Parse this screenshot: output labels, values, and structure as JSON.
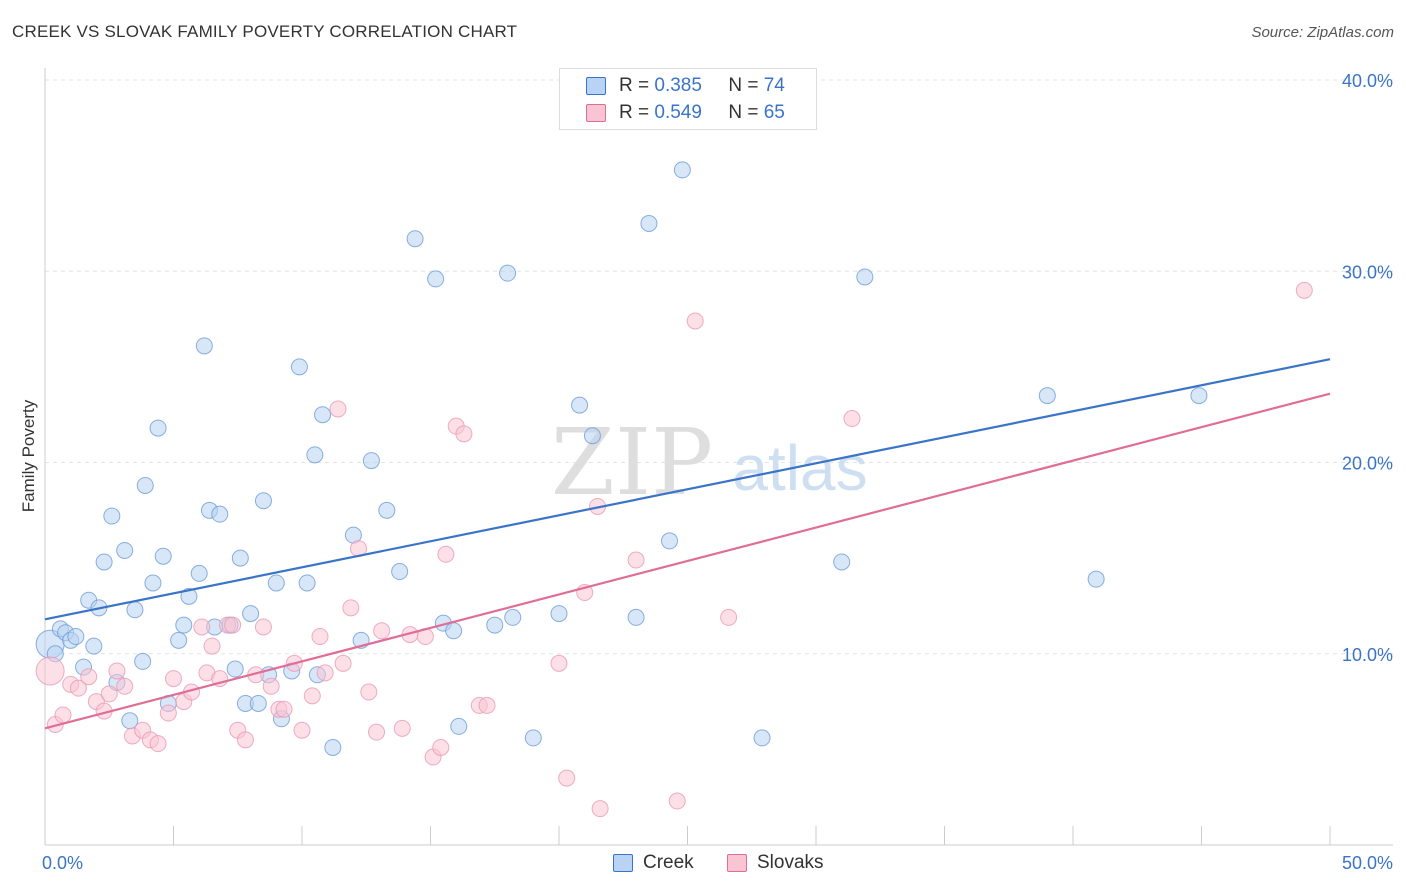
{
  "header": {
    "title": "CREEK VS SLOVAK FAMILY POVERTY CORRELATION CHART",
    "source": "Source: ZipAtlas.com"
  },
  "watermark": {
    "zip": "ZIP",
    "atlas": "atlas"
  },
  "legend": {
    "rows": [
      {
        "r_label": "R =",
        "r_value": "0.385",
        "n_label": "N =",
        "n_value": "74",
        "color": "#b8d3f3"
      },
      {
        "r_label": "R =",
        "r_value": "0.549",
        "n_label": "N =",
        "n_value": "65",
        "color": "#f9c4d4"
      }
    ]
  },
  "bottom_legend": {
    "items": [
      {
        "label": "Creek",
        "color": "#b8d3f3"
      },
      {
        "label": "Slovaks",
        "color": "#f9c4d4"
      }
    ]
  },
  "colors": {
    "creek": "#3a74c9",
    "slovaks": "#e06d96",
    "tick_text": "#3a74c9",
    "grid": "#e3e3e3"
  },
  "chart_data": {
    "type": "scatter",
    "title": "CREEK VS SLOVAK FAMILY POVERTY CORRELATION CHART",
    "xlabel": "",
    "ylabel": "Family Poverty",
    "xlim": [
      0,
      50
    ],
    "ylim": [
      0,
      40
    ],
    "x_tick_labels": [
      "0.0%",
      "50.0%"
    ],
    "y_ticks": [
      10,
      20,
      30,
      40
    ],
    "y_tick_labels": [
      "10.0%",
      "20.0%",
      "30.0%",
      "40.0%"
    ],
    "grid": true,
    "legend_position": "top-center",
    "series": [
      {
        "name": "Creek",
        "r": 0.385,
        "n": 74,
        "trend": {
          "x": [
            0,
            50
          ],
          "y": [
            11.8,
            25.4
          ]
        },
        "points": [
          [
            0.2,
            10.5
          ],
          [
            0.4,
            10.0
          ],
          [
            0.6,
            11.3
          ],
          [
            0.8,
            11.1
          ],
          [
            1.0,
            10.7
          ],
          [
            1.2,
            10.9
          ],
          [
            1.5,
            9.3
          ],
          [
            1.7,
            12.8
          ],
          [
            1.9,
            10.4
          ],
          [
            2.1,
            12.4
          ],
          [
            2.3,
            14.8
          ],
          [
            2.6,
            17.2
          ],
          [
            2.8,
            8.5
          ],
          [
            3.1,
            15.4
          ],
          [
            3.3,
            6.5
          ],
          [
            3.5,
            12.3
          ],
          [
            3.8,
            9.6
          ],
          [
            3.9,
            18.8
          ],
          [
            4.2,
            13.7
          ],
          [
            4.4,
            21.8
          ],
          [
            4.6,
            15.1
          ],
          [
            4.8,
            7.4
          ],
          [
            5.2,
            10.7
          ],
          [
            5.4,
            11.5
          ],
          [
            5.6,
            13.0
          ],
          [
            6.0,
            14.2
          ],
          [
            6.2,
            26.1
          ],
          [
            6.4,
            17.5
          ],
          [
            6.6,
            11.4
          ],
          [
            6.8,
            17.3
          ],
          [
            7.2,
            11.5
          ],
          [
            7.4,
            9.2
          ],
          [
            7.6,
            15.0
          ],
          [
            7.8,
            7.4
          ],
          [
            8.0,
            12.1
          ],
          [
            8.3,
            7.4
          ],
          [
            8.5,
            18.0
          ],
          [
            8.7,
            8.9
          ],
          [
            9.0,
            13.7
          ],
          [
            9.2,
            6.6
          ],
          [
            9.6,
            9.1
          ],
          [
            9.9,
            25.0
          ],
          [
            10.2,
            13.7
          ],
          [
            10.5,
            20.4
          ],
          [
            10.6,
            8.9
          ],
          [
            10.8,
            22.5
          ],
          [
            11.2,
            5.1
          ],
          [
            12.0,
            16.2
          ],
          [
            12.3,
            10.7
          ],
          [
            12.7,
            20.1
          ],
          [
            13.3,
            17.5
          ],
          [
            13.8,
            14.3
          ],
          [
            14.4,
            31.7
          ],
          [
            15.2,
            29.6
          ],
          [
            15.5,
            11.6
          ],
          [
            15.9,
            11.2
          ],
          [
            16.1,
            6.2
          ],
          [
            17.5,
            11.5
          ],
          [
            18.0,
            29.9
          ],
          [
            18.2,
            11.9
          ],
          [
            19.0,
            5.6
          ],
          [
            20.0,
            12.1
          ],
          [
            20.8,
            23.0
          ],
          [
            21.3,
            21.4
          ],
          [
            23.0,
            11.9
          ],
          [
            23.5,
            32.5
          ],
          [
            24.3,
            15.9
          ],
          [
            24.8,
            35.3
          ],
          [
            27.9,
            5.6
          ],
          [
            31.0,
            14.8
          ],
          [
            31.9,
            29.7
          ],
          [
            39.0,
            23.5
          ],
          [
            40.9,
            13.9
          ],
          [
            44.9,
            23.5
          ]
        ]
      },
      {
        "name": "Slovaks",
        "r": 0.549,
        "n": 65,
        "trend": {
          "x": [
            0,
            50
          ],
          "y": [
            6.1,
            23.6
          ]
        },
        "points": [
          [
            0.2,
            9.1
          ],
          [
            0.4,
            6.3
          ],
          [
            0.7,
            6.8
          ],
          [
            1.0,
            8.4
          ],
          [
            1.3,
            8.2
          ],
          [
            1.7,
            8.8
          ],
          [
            2.0,
            7.5
          ],
          [
            2.3,
            7.0
          ],
          [
            2.5,
            7.9
          ],
          [
            2.8,
            9.1
          ],
          [
            3.1,
            8.3
          ],
          [
            3.4,
            5.7
          ],
          [
            3.8,
            6.0
          ],
          [
            4.1,
            5.5
          ],
          [
            4.4,
            5.3
          ],
          [
            4.8,
            6.9
          ],
          [
            5.0,
            8.7
          ],
          [
            5.4,
            7.5
          ],
          [
            5.7,
            8.0
          ],
          [
            6.1,
            11.4
          ],
          [
            6.3,
            9.0
          ],
          [
            6.5,
            10.4
          ],
          [
            6.8,
            8.7
          ],
          [
            7.1,
            11.5
          ],
          [
            7.3,
            11.5
          ],
          [
            7.5,
            6.0
          ],
          [
            7.8,
            5.5
          ],
          [
            8.2,
            8.9
          ],
          [
            8.5,
            11.4
          ],
          [
            8.8,
            8.3
          ],
          [
            9.1,
            7.1
          ],
          [
            9.3,
            7.1
          ],
          [
            9.7,
            9.5
          ],
          [
            10.0,
            6.0
          ],
          [
            10.4,
            7.8
          ],
          [
            10.7,
            10.9
          ],
          [
            10.9,
            9.0
          ],
          [
            11.4,
            22.8
          ],
          [
            11.6,
            9.5
          ],
          [
            11.9,
            12.4
          ],
          [
            12.2,
            15.5
          ],
          [
            12.6,
            8.0
          ],
          [
            12.9,
            5.9
          ],
          [
            13.1,
            11.2
          ],
          [
            13.9,
            6.1
          ],
          [
            14.2,
            11.0
          ],
          [
            14.8,
            10.9
          ],
          [
            15.1,
            4.6
          ],
          [
            15.4,
            5.1
          ],
          [
            15.6,
            15.2
          ],
          [
            16.0,
            21.9
          ],
          [
            16.3,
            21.5
          ],
          [
            16.9,
            7.3
          ],
          [
            17.2,
            7.3
          ],
          [
            20.0,
            9.5
          ],
          [
            20.3,
            3.5
          ],
          [
            21.0,
            13.2
          ],
          [
            21.5,
            17.7
          ],
          [
            21.6,
            1.9
          ],
          [
            23.0,
            14.9
          ],
          [
            24.6,
            2.3
          ],
          [
            25.3,
            27.4
          ],
          [
            26.6,
            11.9
          ],
          [
            31.4,
            22.3
          ],
          [
            49.0,
            29.0
          ]
        ]
      }
    ]
  }
}
